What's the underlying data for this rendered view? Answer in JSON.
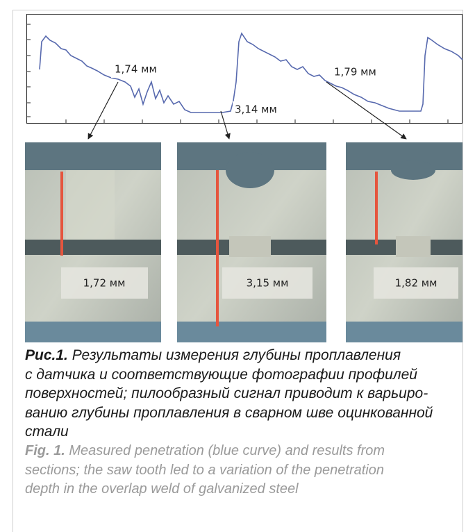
{
  "figure": {
    "plot_labels": [
      "1,74 мм",
      "3,14 мм",
      "1,79 мм"
    ],
    "photo_labels": [
      "1,72 мм",
      "3,15 мм",
      "1,82 мм"
    ]
  },
  "caption": {
    "ru_label": "Рис.1.",
    "ru_lines": [
      "Результаты измерения глубины проплавления",
      "с датчика и соответствующие фотографии профилей",
      "поверхностей; пилообразный сигнал приводит к варьиро-",
      "ванию глубины проплавления в сварном шве оцинкованной",
      "стали"
    ],
    "en_label": "Fig. 1.",
    "en_lines": [
      "Measured penetration (blue curve) and results from",
      "sections; the saw tooth led to a variation of the penetration",
      "depth in the overlap weld of galvanized steel"
    ]
  }
}
